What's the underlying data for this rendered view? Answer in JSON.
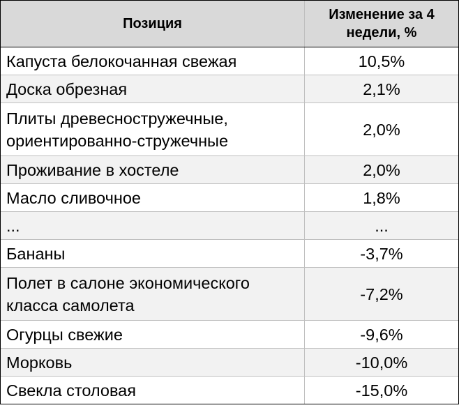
{
  "table": {
    "headers": {
      "position": "Позиция",
      "change": "Изменение за 4 недели, %"
    },
    "rows": [
      {
        "position": "Капуста белокочанная свежая",
        "change": "10,5%"
      },
      {
        "position": "Доска обрезная",
        "change": "2,1%"
      },
      {
        "position": "Плиты древесностружечные, ориентированно-стружечные",
        "change": "2,0%"
      },
      {
        "position": "Проживание в хостеле",
        "change": "2,0%"
      },
      {
        "position": "Масло сливочное",
        "change": "1,8%"
      },
      {
        "position": "...",
        "change": "..."
      },
      {
        "position": "Бананы",
        "change": "-3,7%"
      },
      {
        "position": "Полет в салоне экономического класса самолета",
        "change": "-7,2%"
      },
      {
        "position": "Огурцы свежие",
        "change": "-9,6%"
      },
      {
        "position": "Морковь",
        "change": "-10,0%"
      },
      {
        "position": "Свекла столовая",
        "change": "-15,0%"
      }
    ]
  }
}
